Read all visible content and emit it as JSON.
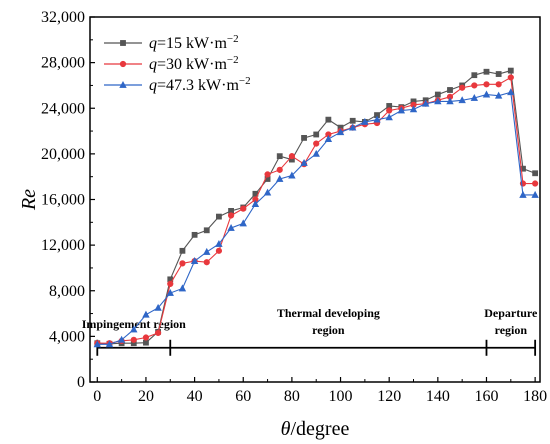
{
  "chart_data": {
    "type": "line",
    "xlabel_italic": "θ",
    "xlabel_rest": "/degree",
    "ylabel": "Re",
    "xlim": [
      -3,
      182
    ],
    "ylim": [
      0,
      32000
    ],
    "x_ticks": [
      0,
      20,
      40,
      60,
      80,
      100,
      120,
      140,
      160,
      180
    ],
    "y_ticks": [
      0,
      4000,
      8000,
      12000,
      16000,
      20000,
      24000,
      28000,
      32000
    ],
    "y_tick_labels": [
      "0",
      "4,000",
      "8,000",
      "12,000",
      "16,000",
      "20,000",
      "24,000",
      "28,000",
      "32,000"
    ],
    "grid": false,
    "legend_position": "top-left",
    "x": [
      0,
      5,
      10,
      15,
      20,
      25,
      30,
      35,
      40,
      45,
      50,
      55,
      60,
      65,
      70,
      75,
      80,
      85,
      90,
      95,
      100,
      105,
      110,
      115,
      120,
      125,
      130,
      135,
      140,
      145,
      150,
      155,
      160,
      165,
      170,
      175,
      180
    ],
    "series": [
      {
        "legend_italic": "q",
        "legend_rest": "=15 kW·m",
        "legend_sup": "−2",
        "color": "#555555",
        "marker": "square",
        "values": [
          3400,
          3350,
          3400,
          3400,
          3450,
          4400,
          9000,
          11500,
          12900,
          13300,
          14500,
          15000,
          15300,
          16500,
          17800,
          19800,
          19500,
          21400,
          21700,
          23000,
          22300,
          22900,
          22800,
          23400,
          24200,
          24100,
          24600,
          24700,
          25200,
          25600,
          26000,
          26900,
          27200,
          27000,
          27300,
          18700,
          18300
        ]
      },
      {
        "legend_italic": "q",
        "legend_rest": "=30 kW·m",
        "legend_sup": "−2",
        "color": "#e8383d",
        "marker": "circle",
        "values": [
          3400,
          3400,
          3600,
          3700,
          3900,
          4300,
          8600,
          10400,
          10600,
          10500,
          11500,
          14600,
          15200,
          16000,
          18200,
          18600,
          19800,
          19100,
          20900,
          21700,
          22000,
          22300,
          22600,
          22700,
          23800,
          24000,
          24300,
          24400,
          24700,
          25000,
          25800,
          26000,
          26100,
          26100,
          26700,
          17400,
          17400
        ]
      },
      {
        "legend_italic": "q",
        "legend_rest": "=47.3 kW·m",
        "legend_sup": "−2",
        "color": "#2f66c7",
        "marker": "triangle",
        "values": [
          3300,
          3300,
          3700,
          4600,
          5900,
          6500,
          7800,
          8200,
          10600,
          11400,
          12100,
          13500,
          13900,
          15600,
          16600,
          17800,
          18100,
          19200,
          20000,
          21300,
          21900,
          22300,
          22800,
          23000,
          23200,
          23800,
          23900,
          24400,
          24600,
          24600,
          24700,
          24900,
          25200,
          25100,
          25400,
          16400,
          16400
        ]
      }
    ],
    "regions": [
      {
        "label_lines": [
          "Impingement region"
        ],
        "x_start": 0,
        "x_end": 30
      },
      {
        "label_lines": [
          "Thermal developing",
          "region"
        ],
        "x_start": 30,
        "x_end": 160
      },
      {
        "label_lines": [
          "Departure",
          "region"
        ],
        "x_start": 160,
        "x_end": 180
      }
    ]
  }
}
